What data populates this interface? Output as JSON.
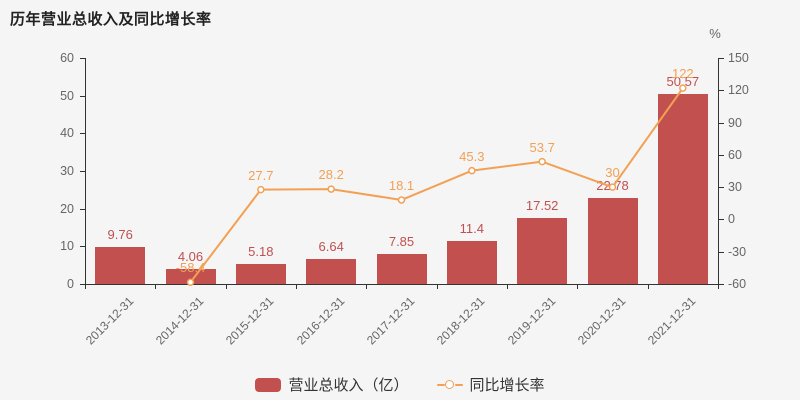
{
  "title": "历年营业总收入及同比增长率",
  "colors": {
    "background": "#f5f5f6",
    "bar": "#c1504f",
    "line": "#f2a154",
    "axis": "#333333",
    "axis_text": "#666666",
    "title_text": "#222222",
    "legend_text": "#333333",
    "marker_fill": "#ffffff"
  },
  "legend": {
    "bar_label": "营业总收入（亿）",
    "line_label": "同比增长率"
  },
  "chart_data": {
    "type": "combo",
    "title": "历年营业总收入及同比增长率",
    "categories": [
      "2013-12-31",
      "2014-12-31",
      "2015-12-31",
      "2016-12-31",
      "2017-12-31",
      "2018-12-31",
      "2019-12-31",
      "2020-12-31",
      "2021-12-31"
    ],
    "series": [
      {
        "name": "营业总收入（亿）",
        "type": "bar",
        "yaxis": "left",
        "color": "#c1504f",
        "values": [
          9.76,
          4.06,
          5.18,
          6.64,
          7.85,
          11.4,
          17.52,
          22.78,
          50.57
        ],
        "labels": [
          "9.76",
          "4.06",
          "5.18",
          "6.64",
          "7.85",
          "11.4",
          "17.52",
          "22.78",
          "50.57"
        ]
      },
      {
        "name": "同比增长率",
        "type": "line",
        "yaxis": "right",
        "color": "#f2a154",
        "values": [
          null,
          -58.4,
          27.7,
          28.2,
          18.1,
          45.3,
          53.7,
          30,
          122
        ],
        "labels": [
          "",
          "-58.4",
          "27.7",
          "28.2",
          "18.1",
          "45.3",
          "53.7",
          "30",
          "122"
        ]
      }
    ],
    "left_axis": {
      "min": 0,
      "max": 60,
      "step": 10,
      "ticks": [
        "0",
        "10",
        "20",
        "30",
        "40",
        "50",
        "60"
      ]
    },
    "right_axis": {
      "min": -60,
      "max": 150,
      "step": 30,
      "unit": "%",
      "ticks": [
        "-60",
        "-30",
        "0",
        "30",
        "60",
        "90",
        "120",
        "150"
      ]
    },
    "grid": false,
    "legend_position": "bottom",
    "x_label_rotation": -45
  }
}
